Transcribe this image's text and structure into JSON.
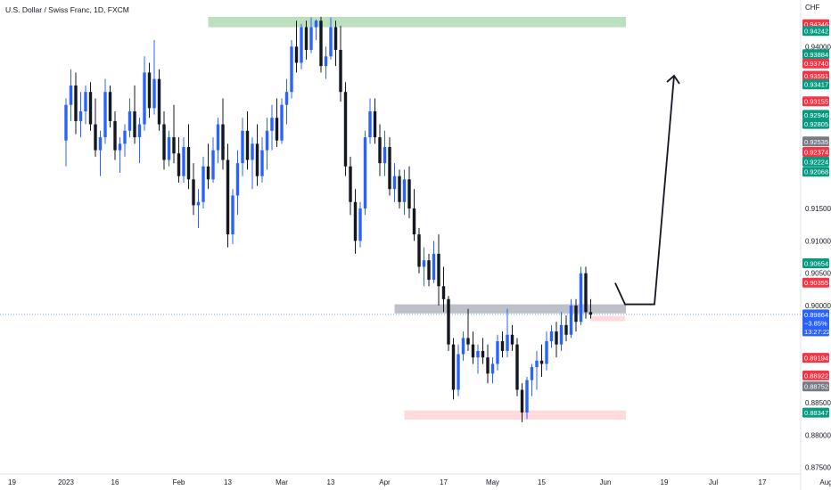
{
  "header": {
    "title": "U.S. Dollar / Swiss Franc, 1D, FXCM"
  },
  "colors": {
    "up": "#2962ff",
    "down": "#131722",
    "supply_zone": "#a5d6a7",
    "demand_zone": "#ffcdd2",
    "resistance_zone": "#b2b5be",
    "green_label": "#089981",
    "red_label": "#f23645",
    "gray_label": "#787b86",
    "blue_label": "#2962ff"
  },
  "chart_data": {
    "type": "candlestick",
    "symbol": "USD/CHF",
    "timeframe": "1D",
    "currency_label": "CHF",
    "price_axis": {
      "ylim": [
        0.874,
        0.9472
      ],
      "ticks": [
        0.94,
        0.915,
        0.91,
        0.905,
        0.9,
        0.885,
        0.88,
        0.875
      ],
      "tick_labels": [
        "0.94000",
        "0.91500",
        "0.91000",
        "0.90500",
        "0.90000",
        "0.88500",
        "0.88000",
        "0.87500"
      ]
    },
    "time_axis": {
      "labels": [
        "19",
        "2023",
        "16",
        "Feb",
        "13",
        "Mar",
        "13",
        "Apr",
        "17",
        "May",
        "15",
        "Jun",
        "19",
        "Jul",
        "17",
        "Aug"
      ],
      "bar_index": [
        -11,
        0,
        10,
        23,
        33,
        44,
        54,
        65,
        77,
        87,
        97,
        110,
        122,
        132,
        142,
        155
      ]
    },
    "current_price": {
      "value": 0.89864,
      "change": "−3.85%",
      "countdown": "13:27:22"
    },
    "price_labels": [
      {
        "text": "0.94346",
        "value": 0.94346,
        "color": "red"
      },
      {
        "text": "0.94242",
        "value": 0.94242,
        "color": "green"
      },
      {
        "text": "0.93884",
        "value": 0.93884,
        "color": "green"
      },
      {
        "text": "0.93740",
        "value": 0.9374,
        "color": "red"
      },
      {
        "text": "0.93551",
        "value": 0.93551,
        "color": "red"
      },
      {
        "text": "0.93417",
        "value": 0.93417,
        "color": "green"
      },
      {
        "text": "0.93155",
        "value": 0.93155,
        "color": "red"
      },
      {
        "text": "0.92946",
        "value": 0.92946,
        "color": "green"
      },
      {
        "text": "0.92805",
        "value": 0.92805,
        "color": "green"
      },
      {
        "text": "0.92535",
        "value": 0.92535,
        "color": "gray"
      },
      {
        "text": "0.92374",
        "value": 0.92374,
        "color": "red"
      },
      {
        "text": "0.92224",
        "value": 0.92224,
        "color": "green"
      },
      {
        "text": "0.92068",
        "value": 0.92068,
        "color": "green"
      },
      {
        "text": "0.90654",
        "value": 0.90654,
        "color": "green"
      },
      {
        "text": "0.90355",
        "value": 0.90355,
        "color": "red"
      },
      {
        "text": "0.89194",
        "value": 0.89194,
        "color": "red"
      },
      {
        "text": "0.88922",
        "value": 0.88922,
        "color": "red"
      },
      {
        "text": "0.88752",
        "value": 0.88752,
        "color": "gray"
      },
      {
        "text": "0.88347",
        "value": 0.88347,
        "color": "green"
      }
    ],
    "zones": [
      {
        "kind": "supply",
        "from_bar": 29,
        "to_bar": 129,
        "low": 0.943,
        "high": 0.9446
      },
      {
        "kind": "resistance",
        "from_bar": 67,
        "to_bar": 129,
        "low": 0.8988,
        "high": 0.9002
      },
      {
        "kind": "small-demand",
        "from_bar": 107,
        "to_bar": 114,
        "low": 0.8976,
        "high": 0.8984
      },
      {
        "kind": "demand",
        "from_bar": 69,
        "to_bar": 129,
        "low": 0.8824,
        "high": 0.8838
      }
    ],
    "projection": [
      [
        112,
        0.9035
      ],
      [
        114,
        0.9002
      ],
      [
        120,
        0.9002
      ],
      [
        124,
        0.9355
      ]
    ],
    "ohlc": [
      [
        0.9255,
        0.932,
        0.9215,
        0.931
      ],
      [
        0.931,
        0.9365,
        0.9285,
        0.934
      ],
      [
        0.934,
        0.936,
        0.9265,
        0.9285
      ],
      [
        0.9285,
        0.933,
        0.926,
        0.93
      ],
      [
        0.93,
        0.934,
        0.928,
        0.933
      ],
      [
        0.933,
        0.9345,
        0.927,
        0.928
      ],
      [
        0.928,
        0.932,
        0.923,
        0.924
      ],
      [
        0.924,
        0.927,
        0.92,
        0.926
      ],
      [
        0.926,
        0.935,
        0.925,
        0.933
      ],
      [
        0.933,
        0.934,
        0.9275,
        0.9285
      ],
      [
        0.9285,
        0.93,
        0.9225,
        0.924
      ],
      [
        0.924,
        0.926,
        0.9205,
        0.925
      ],
      [
        0.925,
        0.928,
        0.923,
        0.927
      ],
      [
        0.927,
        0.932,
        0.926,
        0.93
      ],
      [
        0.93,
        0.934,
        0.925,
        0.926
      ],
      [
        0.926,
        0.929,
        0.922,
        0.928
      ],
      [
        0.928,
        0.9385,
        0.927,
        0.936
      ],
      [
        0.936,
        0.9375,
        0.929,
        0.9305
      ],
      [
        0.9305,
        0.941,
        0.9295,
        0.935
      ],
      [
        0.935,
        0.9365,
        0.927,
        0.928
      ],
      [
        0.928,
        0.93,
        0.921,
        0.9225
      ],
      [
        0.9225,
        0.927,
        0.9215,
        0.926
      ],
      [
        0.926,
        0.931,
        0.922,
        0.9235
      ],
      [
        0.9235,
        0.926,
        0.919,
        0.92
      ],
      [
        0.92,
        0.926,
        0.919,
        0.9245
      ],
      [
        0.9245,
        0.928,
        0.918,
        0.9195
      ],
      [
        0.9195,
        0.922,
        0.914,
        0.9155
      ],
      [
        0.9155,
        0.918,
        0.912,
        0.916
      ],
      [
        0.916,
        0.923,
        0.915,
        0.9215
      ],
      [
        0.9215,
        0.925,
        0.918,
        0.9195
      ],
      [
        0.9195,
        0.926,
        0.919,
        0.924
      ],
      [
        0.924,
        0.929,
        0.922,
        0.928
      ],
      [
        0.928,
        0.932,
        0.921,
        0.9225
      ],
      [
        0.9225,
        0.925,
        0.909,
        0.911
      ],
      [
        0.911,
        0.918,
        0.9095,
        0.917
      ],
      [
        0.917,
        0.924,
        0.914,
        0.922
      ],
      [
        0.922,
        0.929,
        0.92,
        0.927
      ],
      [
        0.927,
        0.93,
        0.921,
        0.9225
      ],
      [
        0.9225,
        0.926,
        0.918,
        0.925
      ],
      [
        0.925,
        0.928,
        0.9185,
        0.92
      ],
      [
        0.92,
        0.926,
        0.919,
        0.924
      ],
      [
        0.924,
        0.929,
        0.921,
        0.927
      ],
      [
        0.927,
        0.931,
        0.924,
        0.929
      ],
      [
        0.929,
        0.932,
        0.9245,
        0.9255
      ],
      [
        0.9255,
        0.932,
        0.925,
        0.931
      ],
      [
        0.931,
        0.935,
        0.928,
        0.933
      ],
      [
        0.933,
        0.941,
        0.932,
        0.94
      ],
      [
        0.94,
        0.944,
        0.936,
        0.9375
      ],
      [
        0.9375,
        0.9435,
        0.9365,
        0.943
      ],
      [
        0.943,
        0.944,
        0.938,
        0.9395
      ],
      [
        0.9395,
        0.9445,
        0.939,
        0.943
      ],
      [
        0.943,
        0.9442,
        0.941,
        0.944
      ],
      [
        0.944,
        0.9446,
        0.936,
        0.937
      ],
      [
        0.937,
        0.94,
        0.935,
        0.9385
      ],
      [
        0.9385,
        0.9445,
        0.938,
        0.943
      ],
      [
        0.943,
        0.944,
        0.937,
        0.9395
      ],
      [
        0.9395,
        0.9432,
        0.9315,
        0.933
      ],
      [
        0.933,
        0.9345,
        0.92,
        0.9215
      ],
      [
        0.9215,
        0.923,
        0.914,
        0.916
      ],
      [
        0.916,
        0.918,
        0.908,
        0.91
      ],
      [
        0.91,
        0.916,
        0.909,
        0.915
      ],
      [
        0.915,
        0.927,
        0.914,
        0.926
      ],
      [
        0.926,
        0.932,
        0.925,
        0.93
      ],
      [
        0.93,
        0.932,
        0.925,
        0.926
      ],
      [
        0.926,
        0.928,
        0.92,
        0.922
      ],
      [
        0.922,
        0.927,
        0.92,
        0.9245
      ],
      [
        0.9245,
        0.926,
        0.917,
        0.918
      ],
      [
        0.918,
        0.922,
        0.916,
        0.92
      ],
      [
        0.92,
        0.921,
        0.915,
        0.916
      ],
      [
        0.916,
        0.921,
        0.914,
        0.9195
      ],
      [
        0.9195,
        0.9215,
        0.9135,
        0.915
      ],
      [
        0.915,
        0.918,
        0.91,
        0.911
      ],
      [
        0.911,
        0.912,
        0.905,
        0.906
      ],
      [
        0.906,
        0.909,
        0.903,
        0.907
      ],
      [
        0.907,
        0.908,
        0.903,
        0.904
      ],
      [
        0.904,
        0.91,
        0.9035,
        0.908
      ],
      [
        0.908,
        0.911,
        0.9,
        0.903
      ],
      [
        0.903,
        0.906,
        0.899,
        0.901
      ],
      [
        0.901,
        0.9015,
        0.893,
        0.894
      ],
      [
        0.894,
        0.895,
        0.8855,
        0.887
      ],
      [
        0.887,
        0.894,
        0.886,
        0.8925
      ],
      [
        0.8925,
        0.896,
        0.8915,
        0.895
      ],
      [
        0.895,
        0.8995,
        0.893,
        0.894
      ],
      [
        0.894,
        0.896,
        0.891,
        0.892
      ],
      [
        0.892,
        0.894,
        0.8895,
        0.893
      ],
      [
        0.893,
        0.895,
        0.891,
        0.892
      ],
      [
        0.892,
        0.894,
        0.888,
        0.8895
      ],
      [
        0.8895,
        0.892,
        0.888,
        0.891
      ],
      [
        0.891,
        0.8955,
        0.89,
        0.8945
      ],
      [
        0.8945,
        0.896,
        0.892,
        0.893
      ],
      [
        0.893,
        0.8995,
        0.892,
        0.8955
      ],
      [
        0.8955,
        0.897,
        0.893,
        0.894
      ],
      [
        0.894,
        0.895,
        0.886,
        0.887
      ],
      [
        0.887,
        0.888,
        0.882,
        0.8835
      ],
      [
        0.8835,
        0.889,
        0.8825,
        0.8885
      ],
      [
        0.8885,
        0.891,
        0.886,
        0.8905
      ],
      [
        0.8905,
        0.893,
        0.887,
        0.8915
      ],
      [
        0.8915,
        0.894,
        0.889,
        0.891
      ],
      [
        0.891,
        0.896,
        0.89,
        0.8945
      ],
      [
        0.8945,
        0.897,
        0.8935,
        0.896
      ],
      [
        0.896,
        0.8975,
        0.892,
        0.894
      ],
      [
        0.894,
        0.899,
        0.893,
        0.897
      ],
      [
        0.897,
        0.8985,
        0.8945,
        0.8955
      ],
      [
        0.8955,
        0.901,
        0.895,
        0.9
      ],
      [
        0.9,
        0.901,
        0.896,
        0.8975
      ],
      [
        0.8975,
        0.906,
        0.897,
        0.905
      ],
      [
        0.905,
        0.906,
        0.898,
        0.899
      ],
      [
        0.899,
        0.901,
        0.898,
        0.8986
      ]
    ]
  }
}
